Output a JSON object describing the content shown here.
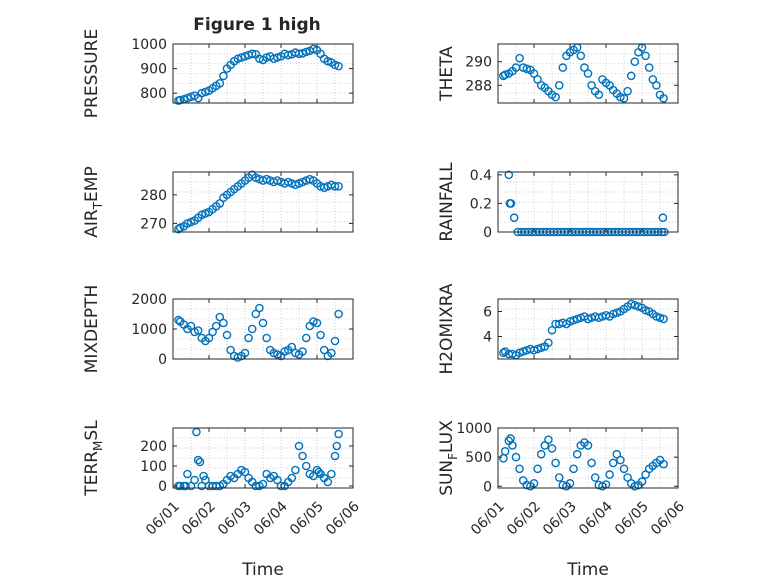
{
  "figure_title": "Figure 1 high",
  "colors": {
    "marker": "#0072BD",
    "axes": "#262626",
    "grid": "#d0d0d0",
    "background": "#ffffff"
  },
  "chart_data": [
    {
      "type": "scatter",
      "ylabel": "PRESSURE",
      "xlabel": "",
      "ylim": [
        760,
        1000
      ],
      "yticks": [
        800,
        900,
        1000
      ],
      "xlim": [
        0,
        5
      ],
      "xtick_labels": [],
      "grid": true,
      "marker": "circle",
      "series": [
        {
          "x": [
            0.15,
            0.2,
            0.3,
            0.4,
            0.5,
            0.6,
            0.7,
            0.8,
            0.9,
            1.0,
            1.1,
            1.2,
            1.3,
            1.4,
            1.5,
            1.6,
            1.7,
            1.8,
            1.9,
            2.0,
            2.1,
            2.2,
            2.3,
            2.4,
            2.5,
            2.6,
            2.7,
            2.8,
            2.9,
            3.0,
            3.1,
            3.2,
            3.3,
            3.4,
            3.5,
            3.6,
            3.7,
            3.8,
            3.9,
            4.0,
            4.1,
            4.2,
            4.3,
            4.4,
            4.5,
            4.6
          ],
          "y": [
            770,
            772,
            775,
            780,
            785,
            790,
            780,
            800,
            805,
            810,
            820,
            830,
            840,
            870,
            900,
            915,
            930,
            940,
            945,
            950,
            955,
            960,
            958,
            940,
            935,
            945,
            950,
            940,
            945,
            950,
            960,
            955,
            958,
            965,
            960,
            962,
            968,
            972,
            980,
            975,
            960,
            940,
            930,
            925,
            915,
            910
          ]
        }
      ]
    },
    {
      "type": "scatter",
      "ylabel": "THETA",
      "xlabel": "",
      "ylim": [
        286.5,
        291.5
      ],
      "yticks": [
        288,
        290
      ],
      "xlim": [
        0,
        5
      ],
      "xtick_labels": [],
      "grid": true,
      "marker": "circle",
      "series": [
        {
          "x": [
            0.15,
            0.2,
            0.3,
            0.4,
            0.5,
            0.6,
            0.7,
            0.8,
            0.9,
            1.0,
            1.1,
            1.2,
            1.3,
            1.4,
            1.5,
            1.6,
            1.7,
            1.8,
            1.9,
            2.0,
            2.1,
            2.2,
            2.3,
            2.4,
            2.5,
            2.6,
            2.7,
            2.8,
            2.9,
            3.0,
            3.1,
            3.2,
            3.3,
            3.4,
            3.5,
            3.6,
            3.7,
            3.8,
            3.9,
            4.0,
            4.1,
            4.2,
            4.3,
            4.4,
            4.5,
            4.6
          ],
          "y": [
            288.8,
            288.9,
            289.0,
            289.2,
            289.5,
            290.3,
            289.5,
            289.4,
            289.3,
            289.0,
            288.5,
            288.0,
            287.8,
            287.5,
            287.2,
            287.0,
            288.0,
            289.5,
            290.5,
            290.8,
            291.0,
            291.2,
            290.5,
            289.5,
            289.0,
            288.0,
            287.5,
            287.2,
            288.5,
            288.2,
            288.0,
            287.6,
            287.3,
            287.0,
            286.9,
            287.5,
            288.8,
            290.0,
            290.8,
            291.2,
            290.5,
            289.5,
            288.5,
            288.0,
            287.2,
            286.9
          ]
        }
      ]
    },
    {
      "type": "scatter",
      "ylabel": "AIR_TEMP",
      "ylabel_parts": [
        "AIR",
        "T",
        "EMP"
      ],
      "xlabel": "",
      "ylim": [
        267,
        288
      ],
      "yticks": [
        270,
        280
      ],
      "xlim": [
        0,
        5
      ],
      "xtick_labels": [],
      "grid": true,
      "marker": "circle",
      "series": [
        {
          "x": [
            0.15,
            0.2,
            0.3,
            0.4,
            0.5,
            0.6,
            0.7,
            0.8,
            0.9,
            1.0,
            1.1,
            1.2,
            1.3,
            1.4,
            1.5,
            1.6,
            1.7,
            1.8,
            1.9,
            2.0,
            2.1,
            2.2,
            2.3,
            2.4,
            2.5,
            2.6,
            2.7,
            2.8,
            2.9,
            3.0,
            3.1,
            3.2,
            3.3,
            3.4,
            3.5,
            3.6,
            3.7,
            3.8,
            3.9,
            4.0,
            4.1,
            4.2,
            4.3,
            4.4,
            4.5,
            4.6
          ],
          "y": [
            268,
            268.5,
            269,
            270,
            270.5,
            271,
            272,
            273,
            273.5,
            274,
            275,
            276,
            277,
            279,
            280,
            281,
            282,
            283,
            284,
            285,
            286,
            287,
            286,
            285.5,
            285,
            285.5,
            285,
            284.5,
            285,
            284.5,
            284,
            284.5,
            284,
            283.5,
            284,
            284.5,
            285,
            285.5,
            285,
            284,
            283,
            282.5,
            283,
            283.5,
            283,
            283
          ]
        }
      ]
    },
    {
      "type": "scatter",
      "ylabel": "RAINFALL",
      "xlabel": "",
      "ylim": [
        0,
        0.42
      ],
      "yticks": [
        0,
        0.2,
        0.4
      ],
      "xlim": [
        0,
        5
      ],
      "xtick_labels": [],
      "grid": true,
      "marker": "circle",
      "series": [
        {
          "x": [
            0.3,
            0.33,
            0.36,
            0.45,
            0.55,
            0.65,
            0.75,
            0.85,
            0.95,
            1.05,
            1.15,
            1.25,
            1.35,
            1.45,
            1.55,
            1.65,
            1.75,
            1.85,
            1.95,
            2.05,
            2.15,
            2.25,
            2.35,
            2.45,
            2.55,
            2.65,
            2.75,
            2.85,
            2.95,
            3.05,
            3.15,
            3.25,
            3.35,
            3.45,
            3.55,
            3.65,
            3.75,
            3.85,
            3.95,
            4.05,
            4.15,
            4.25,
            4.35,
            4.45,
            4.55,
            4.58,
            4.62
          ],
          "y": [
            0.4,
            0.2,
            0.2,
            0.1,
            0,
            0,
            0,
            0,
            0,
            0,
            0,
            0,
            0,
            0,
            0,
            0,
            0,
            0,
            0,
            0,
            0,
            0,
            0,
            0,
            0,
            0,
            0,
            0,
            0,
            0,
            0,
            0,
            0,
            0,
            0,
            0,
            0,
            0,
            0,
            0,
            0,
            0,
            0,
            0,
            0,
            0.1,
            0
          ]
        }
      ]
    },
    {
      "type": "scatter",
      "ylabel": "MIXDEPTH",
      "xlabel": "",
      "ylim": [
        0,
        2000
      ],
      "yticks": [
        0,
        1000,
        2000
      ],
      "xlim": [
        0,
        5
      ],
      "xtick_labels": [],
      "grid": true,
      "marker": "circle",
      "series": [
        {
          "x": [
            0.15,
            0.2,
            0.3,
            0.4,
            0.5,
            0.6,
            0.7,
            0.8,
            0.9,
            1.0,
            1.1,
            1.2,
            1.3,
            1.4,
            1.5,
            1.6,
            1.7,
            1.8,
            1.9,
            2.0,
            2.1,
            2.2,
            2.3,
            2.4,
            2.5,
            2.6,
            2.7,
            2.8,
            2.9,
            3.0,
            3.1,
            3.2,
            3.3,
            3.4,
            3.5,
            3.6,
            3.7,
            3.8,
            3.9,
            4.0,
            4.1,
            4.2,
            4.3,
            4.4,
            4.5,
            4.6
          ],
          "y": [
            1300,
            1250,
            1150,
            1000,
            1100,
            900,
            950,
            700,
            600,
            700,
            900,
            1100,
            1400,
            1200,
            800,
            300,
            100,
            50,
            100,
            200,
            700,
            1000,
            1500,
            1700,
            1200,
            700,
            300,
            200,
            150,
            100,
            250,
            300,
            400,
            200,
            150,
            250,
            700,
            1100,
            1250,
            1200,
            800,
            300,
            100,
            200,
            600,
            1500
          ]
        }
      ]
    },
    {
      "type": "scatter",
      "ylabel": "H2OMIXRA",
      "xlabel": "",
      "ylim": [
        2.2,
        7.0
      ],
      "yticks": [
        4,
        6
      ],
      "xlim": [
        0,
        5
      ],
      "xtick_labels": [],
      "grid": true,
      "marker": "circle",
      "series": [
        {
          "x": [
            0.15,
            0.2,
            0.3,
            0.4,
            0.5,
            0.6,
            0.7,
            0.8,
            0.9,
            1.0,
            1.1,
            1.2,
            1.3,
            1.4,
            1.5,
            1.6,
            1.7,
            1.8,
            1.9,
            2.0,
            2.1,
            2.2,
            2.3,
            2.4,
            2.5,
            2.6,
            2.7,
            2.8,
            2.9,
            3.0,
            3.1,
            3.2,
            3.3,
            3.4,
            3.5,
            3.6,
            3.7,
            3.8,
            3.9,
            4.0,
            4.1,
            4.2,
            4.3,
            4.4,
            4.5,
            4.6
          ],
          "y": [
            2.7,
            2.8,
            2.6,
            2.6,
            2.5,
            2.7,
            2.8,
            2.9,
            3.0,
            2.9,
            3.0,
            3.1,
            3.2,
            3.5,
            4.5,
            5.0,
            5.0,
            5.1,
            5.0,
            5.2,
            5.3,
            5.4,
            5.5,
            5.6,
            5.4,
            5.5,
            5.6,
            5.5,
            5.6,
            5.7,
            5.6,
            5.8,
            5.9,
            6.0,
            6.2,
            6.4,
            6.6,
            6.5,
            6.4,
            6.3,
            6.1,
            6.0,
            5.8,
            5.6,
            5.5,
            5.4
          ]
        }
      ]
    },
    {
      "type": "scatter",
      "ylabel": "TERR_MSL",
      "ylabel_parts": [
        "TERR",
        "M",
        "SL"
      ],
      "xlabel": "Time",
      "ylim": [
        -10,
        290
      ],
      "yticks": [
        0,
        100,
        200
      ],
      "xlim": [
        0,
        5
      ],
      "xtick_labels": [
        "06/01",
        "06/02",
        "06/03",
        "06/04",
        "06/05",
        "06/06"
      ],
      "grid": true,
      "marker": "circle",
      "series": [
        {
          "x": [
            0.15,
            0.2,
            0.3,
            0.35,
            0.4,
            0.5,
            0.6,
            0.65,
            0.7,
            0.75,
            0.8,
            0.85,
            0.9,
            1.0,
            1.1,
            1.2,
            1.3,
            1.4,
            1.5,
            1.6,
            1.7,
            1.8,
            1.9,
            2.0,
            2.1,
            2.2,
            2.3,
            2.4,
            2.5,
            2.6,
            2.7,
            2.8,
            2.9,
            3.0,
            3.1,
            3.2,
            3.3,
            3.4,
            3.5,
            3.6,
            3.7,
            3.8,
            3.9,
            4.0,
            4.05,
            4.1,
            4.2,
            4.3,
            4.4,
            4.5,
            4.55,
            4.6
          ],
          "y": [
            0,
            0,
            0,
            0,
            60,
            0,
            30,
            270,
            130,
            120,
            0,
            50,
            30,
            0,
            0,
            0,
            0,
            10,
            30,
            50,
            40,
            60,
            80,
            70,
            40,
            20,
            0,
            0,
            10,
            60,
            40,
            50,
            30,
            0,
            0,
            20,
            40,
            80,
            200,
            150,
            100,
            60,
            50,
            80,
            70,
            60,
            40,
            20,
            60,
            150,
            200,
            260
          ]
        }
      ]
    },
    {
      "type": "scatter",
      "ylabel": "SUN_FLUX",
      "ylabel_parts": [
        "SUN",
        "F",
        "LUX"
      ],
      "xlabel": "Time",
      "ylim": [
        -30,
        1000
      ],
      "yticks": [
        0,
        500,
        1000
      ],
      "xlim": [
        0,
        5
      ],
      "xtick_labels": [
        "06/01",
        "06/02",
        "06/03",
        "06/04",
        "06/05",
        "06/06"
      ],
      "grid": true,
      "marker": "circle",
      "series": [
        {
          "x": [
            0.15,
            0.2,
            0.3,
            0.35,
            0.4,
            0.5,
            0.6,
            0.7,
            0.8,
            0.9,
            1.0,
            1.1,
            1.2,
            1.3,
            1.4,
            1.5,
            1.6,
            1.7,
            1.8,
            1.9,
            2.0,
            2.1,
            2.2,
            2.3,
            2.4,
            2.5,
            2.6,
            2.7,
            2.8,
            2.9,
            3.0,
            3.1,
            3.2,
            3.3,
            3.4,
            3.5,
            3.6,
            3.7,
            3.8,
            3.9,
            4.0,
            4.1,
            4.2,
            4.3,
            4.4,
            4.5,
            4.6
          ],
          "y": [
            480,
            600,
            780,
            820,
            700,
            500,
            300,
            100,
            20,
            0,
            50,
            300,
            550,
            700,
            800,
            650,
            400,
            150,
            20,
            0,
            50,
            300,
            550,
            700,
            750,
            700,
            400,
            150,
            20,
            0,
            30,
            200,
            400,
            550,
            450,
            300,
            150,
            50,
            0,
            20,
            80,
            200,
            300,
            350,
            400,
            450,
            380
          ]
        }
      ]
    }
  ]
}
